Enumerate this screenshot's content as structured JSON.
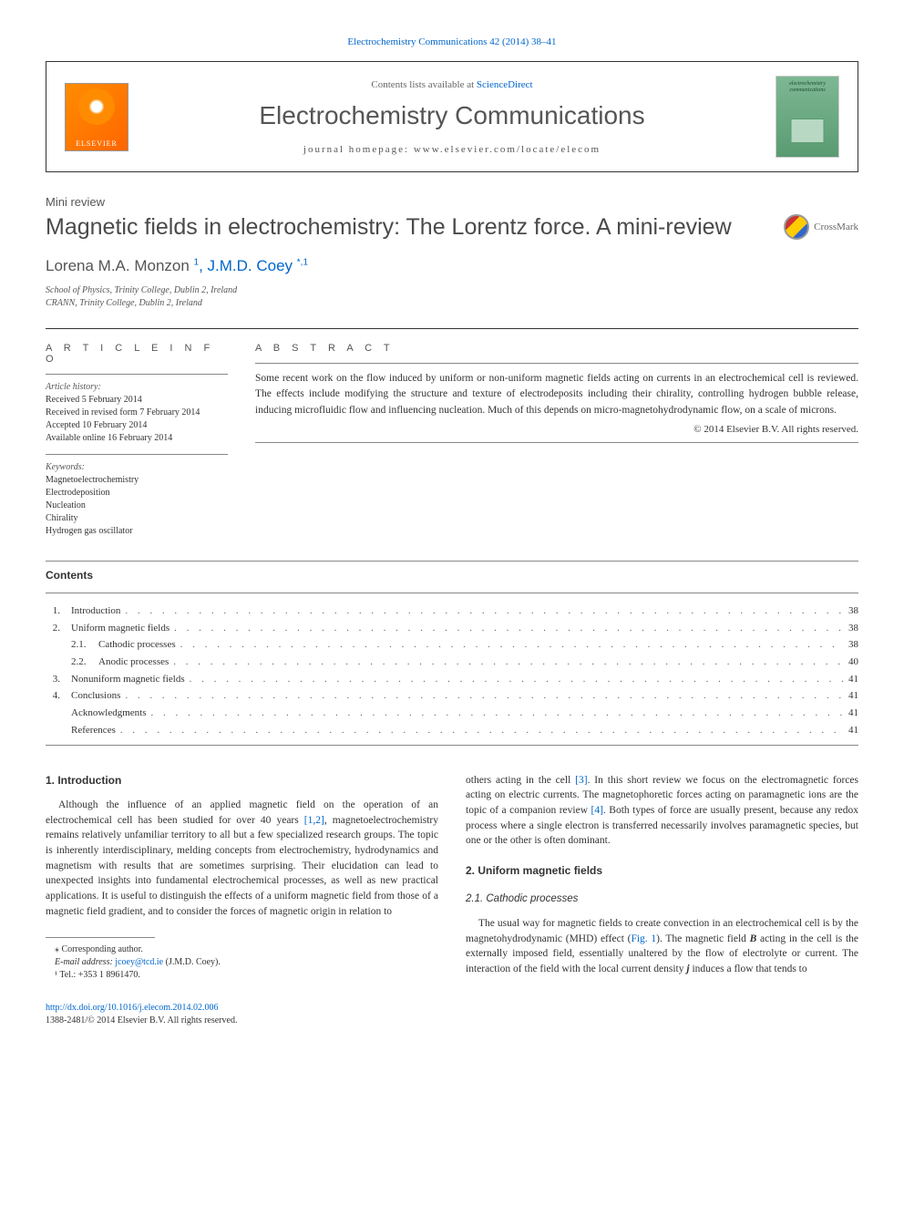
{
  "citation": "Electrochemistry Communications 42 (2014) 38–41",
  "header": {
    "contents_available": "Contents lists available at ",
    "sciencedirect": "ScienceDirect",
    "journal_name": "Electrochemistry Communications",
    "homepage_label": "journal homepage: ",
    "homepage_url": "www.elsevier.com/locate/elecom",
    "elsevier": "ELSEVIER",
    "cover_text1": "electrochemistry",
    "cover_text2": "communications"
  },
  "article_type": "Mini review",
  "title": "Magnetic fields in electrochemistry: The Lorentz force. A mini-review",
  "crossmark": "CrossMark",
  "authors": {
    "a1_name": "Lorena M.A. Monzon ",
    "a1_sup": "1",
    "a2_name": ", J.M.D. Coey ",
    "a2_sup": "*,1"
  },
  "affiliations": {
    "line1": "School of Physics, Trinity College, Dublin 2, Ireland",
    "line2": "CRANN, Trinity College, Dublin 2, Ireland"
  },
  "info": {
    "heading": "A R T I C L E   I N F O",
    "history_label": "Article history:",
    "h1": "Received 5 February 2014",
    "h2": "Received in revised form 7 February 2014",
    "h3": "Accepted 10 February 2014",
    "h4": "Available online 16 February 2014",
    "keywords_label": "Keywords:",
    "k1": "Magnetoelectrochemistry",
    "k2": "Electrodeposition",
    "k3": "Nucleation",
    "k4": "Chirality",
    "k5": "Hydrogen gas oscillator"
  },
  "abstract": {
    "heading": "A B S T R A C T",
    "text": "Some recent work on the flow induced by uniform or non-uniform magnetic fields acting on currents in an electrochemical cell is reviewed. The effects include modifying the structure and texture of electrodeposits including their chirality, controlling hydrogen bubble release, inducing microfluidic flow and influencing nucleation. Much of this depends on micro-magnetohydrodynamic flow, on a scale of microns.",
    "copyright": "© 2014 Elsevier B.V. All rights reserved."
  },
  "contents": {
    "heading": "Contents",
    "items": [
      {
        "num": "1.",
        "title": "Introduction",
        "page": "38",
        "indent": 0
      },
      {
        "num": "2.",
        "title": "Uniform magnetic fields",
        "page": "38",
        "indent": 0
      },
      {
        "num": "2.1.",
        "title": "Cathodic processes",
        "page": "38",
        "indent": 1
      },
      {
        "num": "2.2.",
        "title": "Anodic processes",
        "page": "40",
        "indent": 1
      },
      {
        "num": "3.",
        "title": "Nonuniform magnetic fields",
        "page": "41",
        "indent": 0
      },
      {
        "num": "4.",
        "title": "Conclusions",
        "page": "41",
        "indent": 0
      },
      {
        "num": "",
        "title": "Acknowledgments",
        "page": "41",
        "indent": 0
      },
      {
        "num": "",
        "title": "References",
        "page": "41",
        "indent": 0
      }
    ]
  },
  "body": {
    "s1_heading": "1. Introduction",
    "s1_p1a": "Although the influence of an applied magnetic field on the operation of an electrochemical cell has been studied for over 40 years ",
    "s1_ref1": "[1,2]",
    "s1_p1b": ", magnetoelectrochemistry remains relatively unfamiliar territory to all but a few specialized research groups. The topic is inherently interdisciplinary, melding concepts from electrochemistry, hydrodynamics and magnetism with results that are sometimes surprising. Their elucidation can lead to unexpected insights into fundamental electrochemical processes, as well as new practical applications. It is useful to distinguish the effects of a uniform magnetic field from those of a magnetic field gradient, and to consider the forces of magnetic origin in relation to",
    "s1_p2a": "others acting in the cell ",
    "s1_ref2": "[3]",
    "s1_p2b": ". In this short review we focus on the electromagnetic forces acting on electric currents. The magnetophoretic forces acting on paramagnetic ions are the topic of a companion review ",
    "s1_ref3": "[4]",
    "s1_p2c": ". Both types of force are usually present, because any redox process where a single electron is transferred necessarily involves paramagnetic species, but one or the other is often dominant.",
    "s2_heading": "2. Uniform magnetic fields",
    "s21_heading": "2.1. Cathodic processes",
    "s21_p1a": "The usual way for magnetic fields to create convection in an electrochemical cell is by the magnetohydrodynamic (MHD) effect (",
    "s21_fig": "Fig. 1",
    "s21_p1b": "). The magnetic field ",
    "s21_B": "B",
    "s21_p1c": " acting in the cell is the externally imposed field, essentially unaltered by the flow of electrolyte or current. The interaction of the field with the local current density ",
    "s21_j": "j",
    "s21_p1d": " induces a flow that tends to"
  },
  "footnotes": {
    "corresp": "⁎ Corresponding author.",
    "email_label": "E-mail address: ",
    "email": "jcoey@tcd.ie",
    "email_who": " (J.M.D. Coey).",
    "tel": "¹ Tel.: +353 1 8961470."
  },
  "doi": {
    "url": "http://dx.doi.org/10.1016/j.elecom.2014.02.006",
    "issn_copyright": "1388-2481/© 2014 Elsevier B.V. All rights reserved."
  }
}
